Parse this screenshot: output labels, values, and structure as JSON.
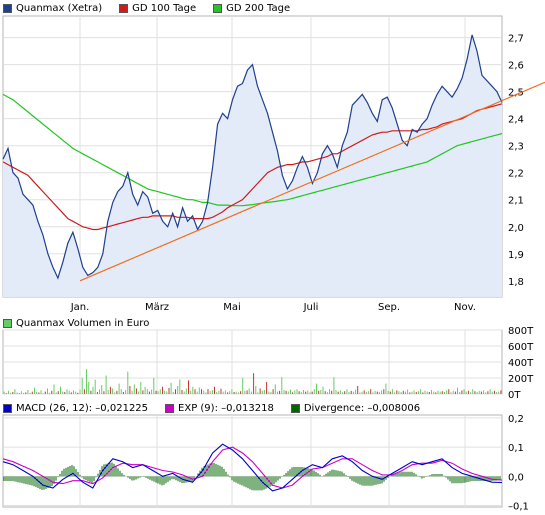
{
  "legends": {
    "price": [
      {
        "label": "Quanmax (Xetra)",
        "color": "#1f3f8f"
      },
      {
        "label": "GD 100 Tage",
        "color": "#d11b1b"
      },
      {
        "label": "GD 200 Tage",
        "color": "#22c522"
      }
    ],
    "volume": [
      {
        "label": "Quanmax Volumen in Euro",
        "color": "#66cc66"
      }
    ],
    "macd": [
      {
        "label": "MACD (26, 12): –0,021225",
        "color": "#0000cc"
      },
      {
        "label": "EXP (9): –0,013218",
        "color": "#cc00cc"
      },
      {
        "label": "Divergence: –0,008006",
        "color": "#006600"
      }
    ]
  },
  "chart_data": [
    {
      "type": "line",
      "title": "",
      "xlabel": "",
      "ylabel": "",
      "x_ticks": [
        "Jan.",
        "März",
        "Mai",
        "Juli",
        "Sep.",
        "Nov."
      ],
      "y_ticks": [
        "1,8",
        "1,9",
        "2,0",
        "2,1",
        "2,2",
        "2,3",
        "2,4",
        "2,5",
        "2,6",
        "2,7"
      ],
      "ylim": [
        1.74,
        2.78
      ],
      "grid": true,
      "legend": "top-left",
      "x": [
        0,
        5,
        10,
        15,
        20,
        25,
        30,
        35,
        40,
        45,
        50,
        55,
        60,
        65,
        70,
        75,
        80,
        85,
        90,
        95,
        100,
        105,
        110,
        115,
        120,
        125,
        130,
        135,
        140,
        145,
        150,
        155,
        160,
        165,
        170,
        175,
        180,
        185,
        190,
        195,
        200,
        205,
        210,
        215,
        220,
        225,
        230,
        235,
        240,
        245,
        250,
        255,
        260,
        265,
        270,
        275,
        280,
        285,
        290,
        295,
        300,
        305,
        310,
        315,
        320,
        325,
        330,
        335,
        340,
        345,
        350,
        355,
        360,
        365,
        370,
        375,
        380,
        385,
        390,
        395,
        400,
        405,
        410,
        415,
        420,
        425,
        430,
        435,
        440,
        445,
        450,
        455,
        460,
        465,
        470,
        475,
        480,
        485,
        490,
        495,
        500
      ],
      "series": [
        {
          "name": "Quanmax (Xetra)",
          "color": "#1f3f8f",
          "fill": "#e3ebf8",
          "values": [
            2.25,
            2.29,
            2.2,
            2.18,
            2.12,
            2.1,
            2.08,
            2.02,
            1.97,
            1.9,
            1.85,
            1.81,
            1.87,
            1.94,
            1.98,
            1.92,
            1.85,
            1.82,
            1.83,
            1.85,
            1.9,
            2.02,
            2.09,
            2.13,
            2.15,
            2.2,
            2.12,
            2.08,
            2.13,
            2.11,
            2.05,
            2.06,
            2.02,
            2.0,
            2.05,
            2.0,
            2.07,
            2.02,
            2.04,
            1.99,
            2.02,
            2.09,
            2.22,
            2.38,
            2.42,
            2.4,
            2.47,
            2.52,
            2.53,
            2.58,
            2.6,
            2.52,
            2.47,
            2.42,
            2.35,
            2.28,
            2.19,
            2.14,
            2.17,
            2.22,
            2.26,
            2.22,
            2.16,
            2.2,
            2.27,
            2.3,
            2.27,
            2.22,
            2.3,
            2.35,
            2.45,
            2.47,
            2.49,
            2.46,
            2.42,
            2.39,
            2.47,
            2.48,
            2.44,
            2.38,
            2.32,
            2.3,
            2.36,
            2.35,
            2.38,
            2.4,
            2.45,
            2.49,
            2.52,
            2.5,
            2.48,
            2.51,
            2.55,
            2.62,
            2.71,
            2.65,
            2.56,
            2.54,
            2.52,
            2.5,
            2.46
          ]
        },
        {
          "name": "GD 100 Tage",
          "color": "#d11b1b",
          "values": [
            2.24,
            2.23,
            2.22,
            2.21,
            2.2,
            2.19,
            2.17,
            2.15,
            2.13,
            2.11,
            2.09,
            2.07,
            2.05,
            2.03,
            2.02,
            2.01,
            2.0,
            1.995,
            1.99,
            1.99,
            1.995,
            2.0,
            2.005,
            2.01,
            2.015,
            2.02,
            2.025,
            2.03,
            2.035,
            2.035,
            2.04,
            2.04,
            2.04,
            2.04,
            2.04,
            2.035,
            2.035,
            2.035,
            2.03,
            2.03,
            2.03,
            2.03,
            2.035,
            2.045,
            2.055,
            2.07,
            2.08,
            2.09,
            2.1,
            2.12,
            2.14,
            2.16,
            2.18,
            2.2,
            2.21,
            2.22,
            2.225,
            2.23,
            2.23,
            2.235,
            2.24,
            2.24,
            2.245,
            2.25,
            2.255,
            2.26,
            2.27,
            2.27,
            2.28,
            2.29,
            2.3,
            2.31,
            2.32,
            2.33,
            2.34,
            2.345,
            2.35,
            2.35,
            2.355,
            2.355,
            2.355,
            2.355,
            2.355,
            2.355,
            2.36,
            2.36,
            2.365,
            2.37,
            2.38,
            2.385,
            2.39,
            2.395,
            2.4,
            2.41,
            2.42,
            2.43,
            2.435,
            2.44,
            2.445,
            2.45,
            2.455
          ]
        },
        {
          "name": "GD 200 Tage",
          "color": "#22c522",
          "values": [
            2.49,
            2.48,
            2.47,
            2.455,
            2.44,
            2.425,
            2.41,
            2.395,
            2.38,
            2.365,
            2.35,
            2.335,
            2.32,
            2.305,
            2.29,
            2.28,
            2.27,
            2.26,
            2.25,
            2.24,
            2.23,
            2.22,
            2.21,
            2.2,
            2.19,
            2.18,
            2.17,
            2.16,
            2.15,
            2.14,
            2.135,
            2.13,
            2.125,
            2.12,
            2.115,
            2.11,
            2.105,
            2.1,
            2.1,
            2.095,
            2.09,
            2.09,
            2.085,
            2.08,
            2.08,
            2.08,
            2.078,
            2.078,
            2.078,
            2.08,
            2.082,
            2.085,
            2.088,
            2.09,
            2.092,
            2.095,
            2.098,
            2.1,
            2.105,
            2.11,
            2.115,
            2.12,
            2.125,
            2.13,
            2.135,
            2.14,
            2.145,
            2.15,
            2.155,
            2.16,
            2.165,
            2.17,
            2.175,
            2.18,
            2.185,
            2.19,
            2.195,
            2.2,
            2.205,
            2.21,
            2.215,
            2.22,
            2.225,
            2.23,
            2.235,
            2.24,
            2.25,
            2.26,
            2.27,
            2.28,
            2.29,
            2.3,
            2.305,
            2.31,
            2.315,
            2.32,
            2.325,
            2.33,
            2.335,
            2.34,
            2.345
          ]
        }
      ],
      "trendline": {
        "color": "#f07020",
        "from": [
          0,
          1.8
        ],
        "to": [
          570,
          2.52
        ]
      }
    },
    {
      "type": "bar",
      "title": "",
      "y_ticks": [
        "0T",
        "200T",
        "400T",
        "600T",
        "800T"
      ],
      "ylim": [
        0,
        800
      ],
      "unit": "T",
      "grid": true,
      "bar_color": "#66cc66",
      "values": [
        30,
        10,
        40,
        15,
        25,
        60,
        20,
        10,
        35,
        15,
        20,
        50,
        15,
        30,
        80,
        25,
        20,
        45,
        10,
        30,
        70,
        15,
        40,
        120,
        20,
        35,
        90,
        30,
        25,
        60,
        40,
        20,
        45,
        30,
        15,
        55,
        200,
        60,
        310,
        150,
        40,
        90,
        180,
        25,
        60,
        110,
        35,
        230,
        50,
        90,
        70,
        20,
        40,
        130,
        60,
        25,
        50,
        280,
        100,
        40,
        120,
        70,
        30,
        150,
        45,
        90,
        60,
        30,
        55,
        200,
        40,
        35,
        60,
        90,
        40,
        30,
        75,
        140,
        25,
        60,
        100,
        180,
        50,
        30,
        70,
        170,
        40,
        90,
        60,
        30,
        80,
        60,
        45,
        20,
        60,
        35,
        50,
        90,
        25,
        40,
        65,
        30,
        45,
        20,
        35,
        60,
        25,
        30,
        20,
        35,
        200,
        40,
        45,
        70,
        30,
        260,
        100,
        20,
        70,
        40,
        50,
        150,
        30,
        25,
        60,
        120,
        30,
        40,
        210,
        50,
        40,
        30,
        55,
        20,
        45,
        60,
        35,
        25,
        50,
        30,
        45,
        20,
        30,
        60,
        130,
        40,
        50,
        90,
        35,
        25,
        60,
        40,
        210,
        50,
        30,
        45,
        20,
        35,
        60,
        25,
        40,
        30,
        55,
        100,
        20,
        30,
        45,
        25,
        35,
        60,
        20,
        40,
        30,
        25,
        45,
        60,
        130,
        40,
        30,
        60,
        20,
        45,
        35,
        25,
        40,
        30,
        55,
        20,
        30,
        45,
        25,
        35,
        60,
        20,
        40,
        30,
        25,
        50,
        30,
        20,
        40,
        30,
        35,
        25,
        45,
        60,
        20,
        40,
        30,
        80,
        25,
        45,
        60,
        30,
        40,
        20,
        60,
        35,
        25,
        40,
        30,
        45,
        20,
        35,
        60,
        30,
        40,
        25,
        30,
        45
      ]
    },
    {
      "type": "line",
      "title": "",
      "y_ticks": [
        "–0,1",
        "0,0",
        "0,1",
        "0,2"
      ],
      "ylim": [
        -0.105,
        0.21
      ],
      "grid": true,
      "x": [
        0,
        10,
        20,
        30,
        40,
        50,
        60,
        70,
        80,
        90,
        100,
        110,
        120,
        130,
        140,
        150,
        160,
        170,
        180,
        190,
        200,
        210,
        220,
        230,
        240,
        250,
        260,
        270,
        280,
        290,
        300,
        310,
        320,
        330,
        340,
        350,
        360,
        370,
        380,
        390,
        400,
        410,
        420,
        430,
        440,
        450,
        460,
        470,
        480,
        490,
        500
      ],
      "series": [
        {
          "name": "MACD (26, 12)",
          "color": "#0000cc",
          "values": [
            0.05,
            0.04,
            0.02,
            0.0,
            -0.03,
            -0.04,
            -0.01,
            0.01,
            -0.02,
            -0.04,
            0.02,
            0.06,
            0.05,
            0.03,
            0.04,
            0.02,
            0.0,
            0.01,
            -0.01,
            -0.02,
            0.02,
            0.08,
            0.11,
            0.09,
            0.06,
            0.02,
            -0.02,
            -0.05,
            -0.04,
            -0.01,
            0.02,
            0.04,
            0.03,
            0.06,
            0.07,
            0.05,
            0.02,
            0.0,
            -0.01,
            0.01,
            0.03,
            0.05,
            0.04,
            0.05,
            0.06,
            0.03,
            0.01,
            0.0,
            -0.01,
            -0.02,
            -0.021
          ]
        },
        {
          "name": "EXP (9)",
          "color": "#cc00cc",
          "values": [
            0.06,
            0.05,
            0.035,
            0.02,
            0.0,
            -0.02,
            -0.025,
            -0.015,
            -0.015,
            -0.025,
            -0.005,
            0.03,
            0.045,
            0.04,
            0.04,
            0.03,
            0.02,
            0.015,
            0.005,
            -0.01,
            0.0,
            0.05,
            0.09,
            0.1,
            0.08,
            0.05,
            0.01,
            -0.03,
            -0.04,
            -0.03,
            0.0,
            0.025,
            0.03,
            0.045,
            0.06,
            0.06,
            0.04,
            0.02,
            0.005,
            0.005,
            0.02,
            0.04,
            0.045,
            0.045,
            0.055,
            0.045,
            0.025,
            0.01,
            0.0,
            -0.01,
            -0.013
          ]
        }
      ],
      "divergence": {
        "name": "Divergence",
        "color": "#006600"
      }
    }
  ]
}
